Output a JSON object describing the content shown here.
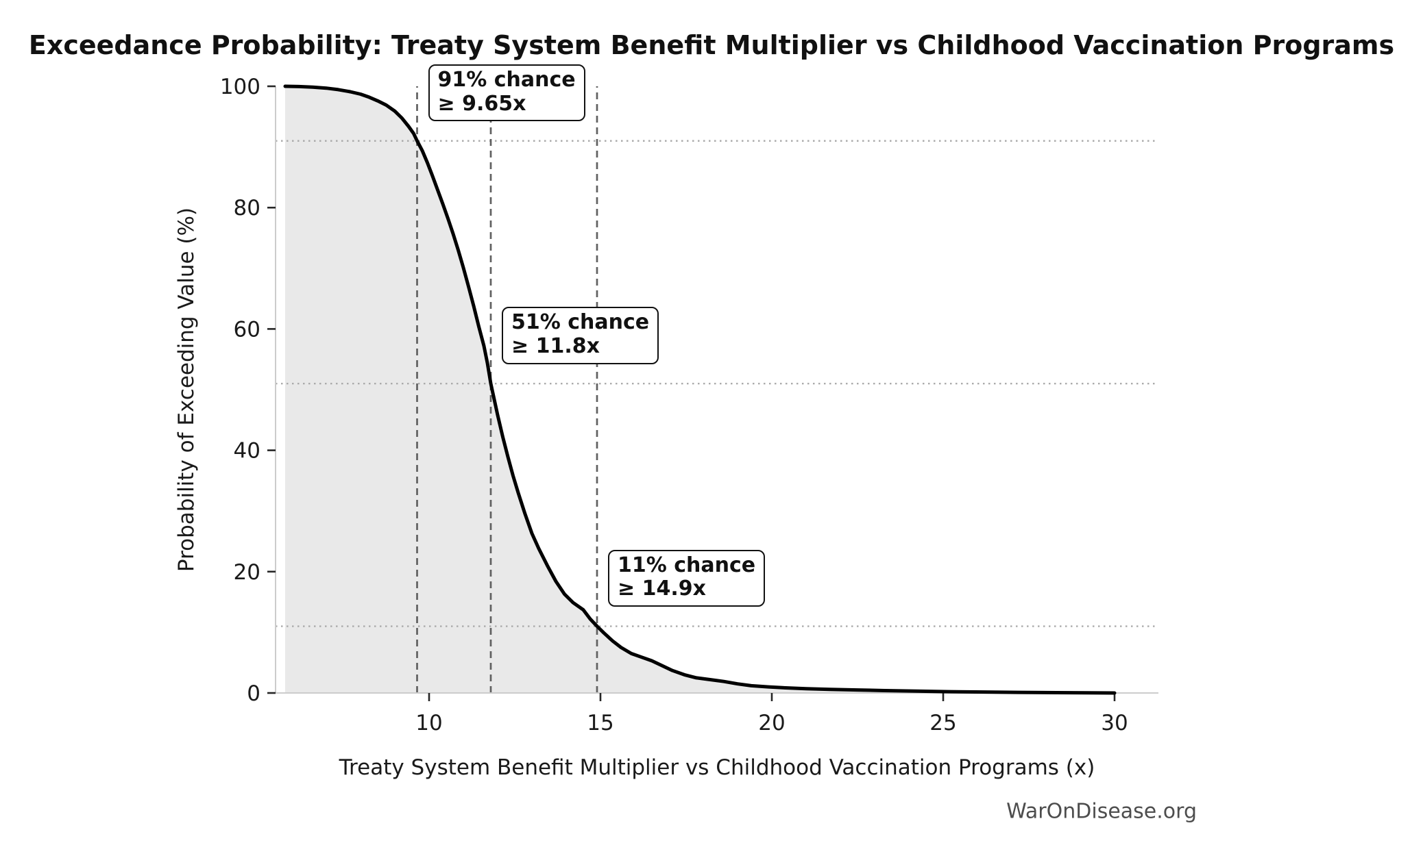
{
  "watermark": "WarOnDisease.org",
  "chart_data": {
    "type": "line",
    "subtype": "exceedance-probability-curve",
    "title": "Exceedance Probability: Treaty System Benefit Multiplier vs Childhood Vaccination Programs",
    "xlabel": "Treaty System Benefit Multiplier vs Childhood Vaccination Programs (x)",
    "ylabel": "Probability of Exceeding Value (%)",
    "xlim": [
      5.5,
      31.3
    ],
    "ylim": [
      0,
      100
    ],
    "x_ticks": [
      10,
      15,
      20,
      25,
      30
    ],
    "y_ticks": [
      0,
      20,
      40,
      60,
      80,
      100
    ],
    "legend": "none",
    "grid": "off",
    "line_color": "#000000",
    "fill_color": "#e9e9e9",
    "dashed_line_color": "#606060",
    "dotted_line_color": "#ababab",
    "spine_color": "#cccccc",
    "markers": [
      {
        "probability_pct": 91,
        "value_x": 9.65,
        "label_line1": "91% chance",
        "label_line2": "≥ 9.65x"
      },
      {
        "probability_pct": 51,
        "value_x": 11.8,
        "label_line1": "51% chance",
        "label_line2": "≥ 11.8x"
      },
      {
        "probability_pct": 11,
        "value_x": 14.9,
        "label_line1": "11% chance",
        "label_line2": "≥ 14.9x"
      }
    ],
    "series": [
      {
        "name": "exceedance-curve",
        "points": [
          [
            5.8,
            100
          ],
          [
            6.2,
            99.95
          ],
          [
            6.6,
            99.85
          ],
          [
            7.0,
            99.7
          ],
          [
            7.35,
            99.45
          ],
          [
            7.7,
            99.1
          ],
          [
            8.0,
            98.7
          ],
          [
            8.25,
            98.2
          ],
          [
            8.5,
            97.6
          ],
          [
            8.75,
            96.9
          ],
          [
            9.0,
            95.9
          ],
          [
            9.2,
            94.8
          ],
          [
            9.4,
            93.4
          ],
          [
            9.55,
            92.2
          ],
          [
            9.65,
            91.0
          ],
          [
            9.8,
            89.4
          ],
          [
            9.95,
            87.4
          ],
          [
            10.1,
            85.2
          ],
          [
            10.25,
            82.9
          ],
          [
            10.4,
            80.6
          ],
          [
            10.55,
            78.2
          ],
          [
            10.7,
            75.7
          ],
          [
            10.85,
            73.0
          ],
          [
            11.0,
            70.1
          ],
          [
            11.15,
            67.0
          ],
          [
            11.3,
            63.8
          ],
          [
            11.45,
            60.4
          ],
          [
            11.6,
            57.2
          ],
          [
            11.7,
            54.4
          ],
          [
            11.8,
            51.0
          ],
          [
            11.9,
            48.4
          ],
          [
            12.0,
            45.8
          ],
          [
            12.15,
            42.2
          ],
          [
            12.3,
            38.9
          ],
          [
            12.45,
            35.8
          ],
          [
            12.6,
            33.0
          ],
          [
            12.8,
            29.5
          ],
          [
            13.0,
            26.3
          ],
          [
            13.2,
            23.8
          ],
          [
            13.45,
            21.0
          ],
          [
            13.7,
            18.4
          ],
          [
            13.95,
            16.3
          ],
          [
            14.2,
            14.9
          ],
          [
            14.5,
            13.7
          ],
          [
            14.7,
            12.2
          ],
          [
            14.9,
            11.0
          ],
          [
            15.1,
            9.9
          ],
          [
            15.35,
            8.6
          ],
          [
            15.6,
            7.5
          ],
          [
            15.9,
            6.5
          ],
          [
            16.2,
            5.9
          ],
          [
            16.5,
            5.3
          ],
          [
            16.8,
            4.5
          ],
          [
            17.1,
            3.7
          ],
          [
            17.45,
            3.0
          ],
          [
            17.8,
            2.5
          ],
          [
            18.2,
            2.2
          ],
          [
            18.6,
            1.9
          ],
          [
            19.0,
            1.5
          ],
          [
            19.4,
            1.2
          ],
          [
            19.9,
            1.0
          ],
          [
            20.4,
            0.85
          ],
          [
            21.0,
            0.7
          ],
          [
            21.7,
            0.6
          ],
          [
            22.5,
            0.5
          ],
          [
            23.3,
            0.4
          ],
          [
            24.2,
            0.3
          ],
          [
            25.2,
            0.22
          ],
          [
            26.2,
            0.16
          ],
          [
            27.2,
            0.1
          ],
          [
            28.3,
            0.06
          ],
          [
            29.2,
            0.03
          ],
          [
            30.0,
            0.0
          ]
        ]
      }
    ]
  }
}
